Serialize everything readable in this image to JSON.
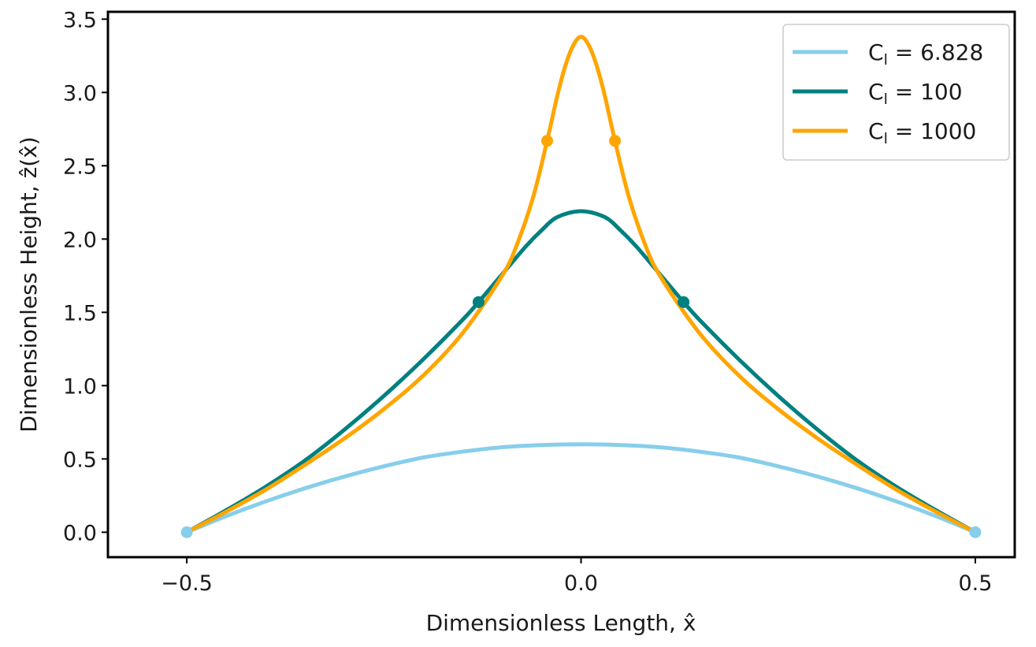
{
  "chart_data": {
    "type": "line",
    "xlabel": "Dimensionless Length, x̂",
    "ylabel": "Dimensionless Height, ẑ(x̂)",
    "xlim": [
      -0.6,
      0.55
    ],
    "ylim": [
      -0.17,
      3.55
    ],
    "xticks": [
      {
        "value": -0.5,
        "label": "−0.5"
      },
      {
        "value": 0.0,
        "label": "0.0"
      },
      {
        "value": 0.5,
        "label": "0.5"
      }
    ],
    "yticks": [
      {
        "value": 0.0,
        "label": "0.0"
      },
      {
        "value": 0.5,
        "label": "0.5"
      },
      {
        "value": 1.0,
        "label": "1.0"
      },
      {
        "value": 1.5,
        "label": "1.5"
      },
      {
        "value": 2.0,
        "label": "2.0"
      },
      {
        "value": 2.5,
        "label": "2.5"
      },
      {
        "value": 3.0,
        "label": "3.0"
      },
      {
        "value": 3.5,
        "label": "3.5"
      }
    ],
    "grid": false,
    "legend_position": "top-right",
    "series": [
      {
        "name": "C",
        "name_sub": "l",
        "name_rest": " = 6.828",
        "color": "#87CEEB",
        "x": [
          -0.5,
          -0.45,
          -0.4,
          -0.35,
          -0.3,
          -0.25,
          -0.2,
          -0.15,
          -0.1,
          -0.05,
          0.0,
          0.05,
          0.1,
          0.15,
          0.2,
          0.25,
          0.3,
          0.35,
          0.4,
          0.45,
          0.5
        ],
        "y": [
          0.0,
          0.11,
          0.21,
          0.3,
          0.38,
          0.45,
          0.51,
          0.55,
          0.58,
          0.595,
          0.6,
          0.595,
          0.58,
          0.55,
          0.51,
          0.45,
          0.38,
          0.3,
          0.21,
          0.11,
          0.0
        ],
        "markers": [
          {
            "x": -0.5,
            "y": 0.0
          },
          {
            "x": 0.5,
            "y": 0.0
          }
        ]
      },
      {
        "name": "C",
        "name_sub": "l",
        "name_rest": " = 100",
        "color": "#008080",
        "x": [
          -0.5,
          -0.45,
          -0.4,
          -0.35,
          -0.3,
          -0.25,
          -0.2,
          -0.15,
          -0.13,
          -0.1,
          -0.07,
          -0.05,
          -0.03,
          0.0,
          0.03,
          0.05,
          0.07,
          0.1,
          0.13,
          0.15,
          0.2,
          0.25,
          0.3,
          0.35,
          0.4,
          0.45,
          0.5
        ],
        "y": [
          0.0,
          0.15,
          0.31,
          0.49,
          0.7,
          0.93,
          1.18,
          1.45,
          1.57,
          1.76,
          1.95,
          2.06,
          2.15,
          2.19,
          2.15,
          2.06,
          1.95,
          1.76,
          1.57,
          1.45,
          1.18,
          0.93,
          0.7,
          0.49,
          0.31,
          0.15,
          0.0
        ],
        "markers": [
          {
            "x": -0.13,
            "y": 1.57
          },
          {
            "x": 0.13,
            "y": 1.57
          }
        ]
      },
      {
        "name": "C",
        "name_sub": "l",
        "name_rest": " = 1000",
        "color": "#FFA500",
        "x": [
          -0.5,
          -0.45,
          -0.4,
          -0.35,
          -0.3,
          -0.25,
          -0.2,
          -0.15,
          -0.1,
          -0.08,
          -0.06,
          -0.043,
          -0.03,
          -0.02,
          -0.01,
          0.0,
          0.01,
          0.02,
          0.03,
          0.043,
          0.06,
          0.08,
          0.1,
          0.15,
          0.2,
          0.25,
          0.3,
          0.35,
          0.4,
          0.45,
          0.5
        ],
        "y": [
          0.0,
          0.14,
          0.29,
          0.46,
          0.64,
          0.84,
          1.07,
          1.36,
          1.75,
          1.98,
          2.3,
          2.67,
          2.98,
          3.18,
          3.32,
          3.38,
          3.32,
          3.18,
          2.98,
          2.67,
          2.3,
          1.98,
          1.75,
          1.36,
          1.07,
          0.84,
          0.64,
          0.46,
          0.29,
          0.14,
          0.0
        ],
        "markers": [
          {
            "x": -0.043,
            "y": 2.67
          },
          {
            "x": 0.043,
            "y": 2.67
          }
        ]
      }
    ]
  }
}
